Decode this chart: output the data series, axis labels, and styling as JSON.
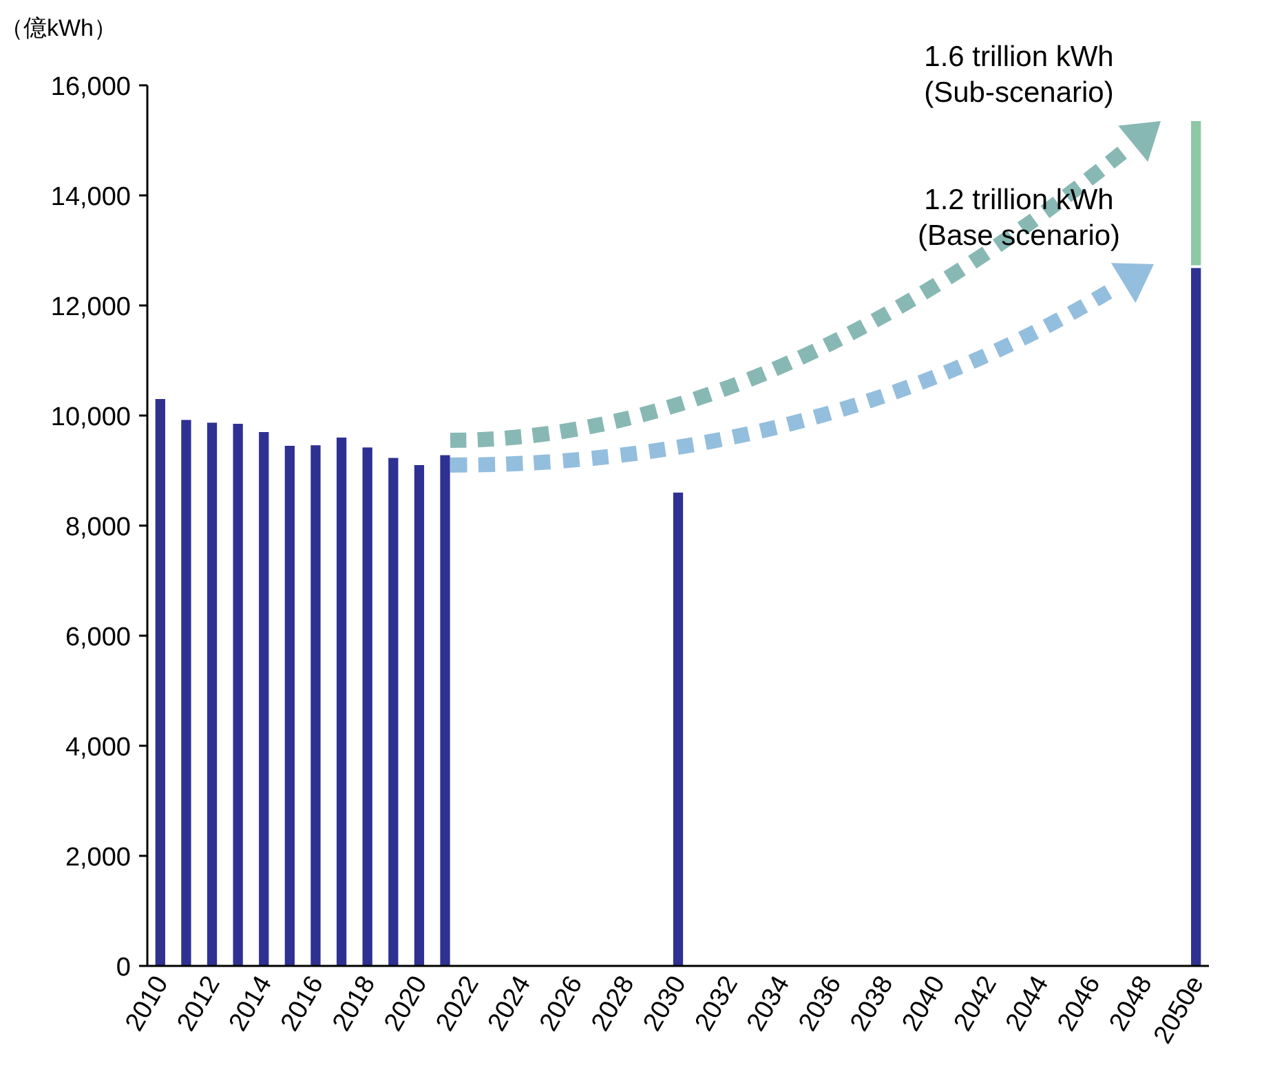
{
  "chart_data": {
    "type": "bar",
    "stacked": true,
    "ylabel": "（億kWh）",
    "categories": [
      "2010",
      null,
      "2012",
      null,
      "2014",
      null,
      "2016",
      null,
      "2018",
      null,
      "2020",
      null,
      "2022",
      null,
      "2024",
      null,
      "2026",
      null,
      "2028",
      null,
      "2030",
      null,
      "2032",
      null,
      "2034",
      null,
      "2036",
      null,
      "2038",
      null,
      "2040",
      null,
      "2042",
      null,
      "2044",
      null,
      "2046",
      null,
      "2048",
      null,
      "2050e"
    ],
    "series": [
      {
        "color": "#2e3192",
        "values": [
          10300,
          9920,
          9870,
          9850,
          9700,
          9450,
          9460,
          9600,
          9420,
          9230,
          9100,
          9280,
          null,
          null,
          null,
          null,
          null,
          null,
          null,
          null,
          8600,
          null,
          null,
          null,
          null,
          null,
          null,
          null,
          null,
          null,
          null,
          null,
          null,
          null,
          null,
          null,
          null,
          null,
          null,
          null,
          12680
        ]
      },
      {
        "color": "#8cc8a4",
        "values": [
          null,
          null,
          null,
          null,
          null,
          null,
          null,
          null,
          null,
          null,
          null,
          null,
          null,
          null,
          null,
          null,
          null,
          null,
          null,
          null,
          null,
          null,
          null,
          null,
          null,
          null,
          null,
          null,
          null,
          null,
          null,
          null,
          null,
          null,
          null,
          null,
          null,
          null,
          null,
          null,
          2670
        ]
      }
    ],
    "ylim": [
      0,
      16000
    ],
    "yticks": [
      {
        "value": 0,
        "label": "0"
      },
      {
        "value": 2000,
        "label": "2,000"
      },
      {
        "value": 4000,
        "label": "4,000"
      },
      {
        "value": 6000,
        "label": "6,000"
      },
      {
        "value": 8000,
        "label": "8,000"
      },
      {
        "value": 10000,
        "label": "10,000"
      },
      {
        "value": 12000,
        "label": "12,000"
      },
      {
        "value": 14000,
        "label": "14,000"
      },
      {
        "value": 16000,
        "label": "16,000"
      }
    ],
    "annotations": [
      "1.6 trillion kWh\n(Sub-scenario)",
      "1.2 trillion kWh\n(Base scenario)"
    ]
  }
}
